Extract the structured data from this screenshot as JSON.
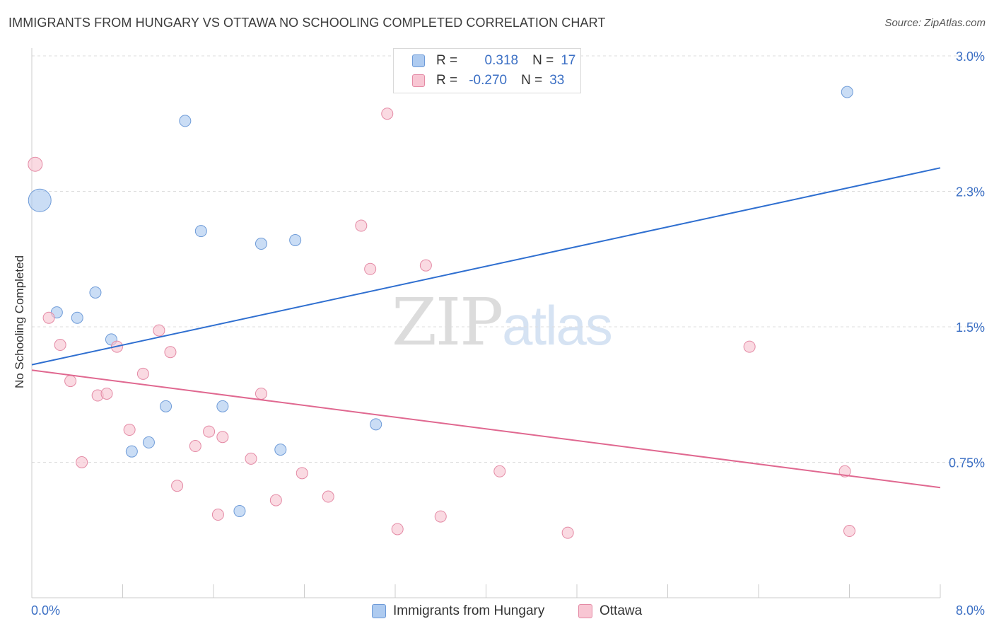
{
  "title": "IMMIGRANTS FROM HUNGARY VS OTTAWA NO SCHOOLING COMPLETED CORRELATION CHART",
  "source": "Source: ZipAtlas.com",
  "watermark": {
    "zip": "ZIP",
    "atlas": "atlas"
  },
  "legend": {
    "rows": [
      {
        "r_label": "R =",
        "r_value": " 0.318",
        "n_label": "N =",
        "n_value": "17",
        "color": "#aecbf0",
        "border": "#6e9bd8"
      },
      {
        "r_label": "R =",
        "r_value": "-0.270",
        "n_label": "N =",
        "n_value": "33",
        "color": "#f8c6d3",
        "border": "#e48aa5"
      }
    ]
  },
  "chart_data": {
    "type": "scatter",
    "title": "IMMIGRANTS FROM HUNGARY VS OTTAWA NO SCHOOLING COMPLETED CORRELATION CHART",
    "xlabel": "",
    "ylabel": "No Schooling Completed",
    "xlim": [
      0.0,
      8.0
    ],
    "ylim": [
      0.0,
      3.0
    ],
    "x_tick_labels": [
      "0.0%",
      "8.0%"
    ],
    "y_ticks": [
      0.75,
      1.5,
      2.25,
      3.0
    ],
    "y_tick_labels": [
      "0.75%",
      "1.5%",
      "2.3%",
      "3.0%"
    ],
    "grid": true,
    "legend_position": "bottom-center",
    "series": [
      {
        "name": "Immigrants from Hungary",
        "color": "#aecbf0",
        "stroke": "#6e9bd8",
        "line_color": "#2f6fd0",
        "trend": {
          "x": [
            0.0,
            8.0
          ],
          "y": [
            1.29,
            2.38
          ]
        },
        "points": [
          {
            "x": 0.07,
            "y": 2.2,
            "size": "large"
          },
          {
            "x": 0.22,
            "y": 1.58
          },
          {
            "x": 0.4,
            "y": 1.55
          },
          {
            "x": 0.56,
            "y": 1.69
          },
          {
            "x": 0.7,
            "y": 1.43
          },
          {
            "x": 0.88,
            "y": 0.81
          },
          {
            "x": 1.03,
            "y": 0.86
          },
          {
            "x": 1.18,
            "y": 1.06
          },
          {
            "x": 1.35,
            "y": 2.64
          },
          {
            "x": 1.49,
            "y": 2.03
          },
          {
            "x": 1.68,
            "y": 1.06
          },
          {
            "x": 1.83,
            "y": 0.48
          },
          {
            "x": 2.02,
            "y": 1.96
          },
          {
            "x": 2.19,
            "y": 0.82
          },
          {
            "x": 2.32,
            "y": 1.98
          },
          {
            "x": 3.03,
            "y": 0.96
          },
          {
            "x": 7.18,
            "y": 2.8
          }
        ]
      },
      {
        "name": "Ottawa",
        "color": "#f8c6d3",
        "stroke": "#e48aa5",
        "line_color": "#e06890",
        "trend": {
          "x": [
            0.0,
            8.0
          ],
          "y": [
            1.26,
            0.61
          ]
        },
        "points": [
          {
            "x": 0.03,
            "y": 2.4,
            "size": "medium"
          },
          {
            "x": 0.15,
            "y": 1.55
          },
          {
            "x": 0.25,
            "y": 1.4
          },
          {
            "x": 0.34,
            "y": 1.2
          },
          {
            "x": 0.44,
            "y": 0.75
          },
          {
            "x": 0.58,
            "y": 1.12
          },
          {
            "x": 0.66,
            "y": 1.13
          },
          {
            "x": 0.75,
            "y": 1.39
          },
          {
            "x": 0.86,
            "y": 0.93
          },
          {
            "x": 0.98,
            "y": 1.24
          },
          {
            "x": 1.12,
            "y": 1.48
          },
          {
            "x": 1.22,
            "y": 1.36
          },
          {
            "x": 1.28,
            "y": 0.62
          },
          {
            "x": 1.44,
            "y": 0.84
          },
          {
            "x": 1.56,
            "y": 0.92
          },
          {
            "x": 1.64,
            "y": 0.46
          },
          {
            "x": 1.68,
            "y": 0.89
          },
          {
            "x": 1.93,
            "y": 0.77
          },
          {
            "x": 2.02,
            "y": 1.13
          },
          {
            "x": 2.15,
            "y": 0.54
          },
          {
            "x": 2.38,
            "y": 0.69
          },
          {
            "x": 2.61,
            "y": 0.56
          },
          {
            "x": 2.9,
            "y": 2.06
          },
          {
            "x": 2.98,
            "y": 1.82
          },
          {
            "x": 3.13,
            "y": 2.68
          },
          {
            "x": 3.22,
            "y": 0.38
          },
          {
            "x": 3.47,
            "y": 1.84
          },
          {
            "x": 3.6,
            "y": 0.45
          },
          {
            "x": 4.12,
            "y": 0.7
          },
          {
            "x": 4.72,
            "y": 0.36
          },
          {
            "x": 6.32,
            "y": 1.39
          },
          {
            "x": 7.16,
            "y": 0.7
          },
          {
            "x": 7.2,
            "y": 0.37
          }
        ]
      }
    ]
  }
}
